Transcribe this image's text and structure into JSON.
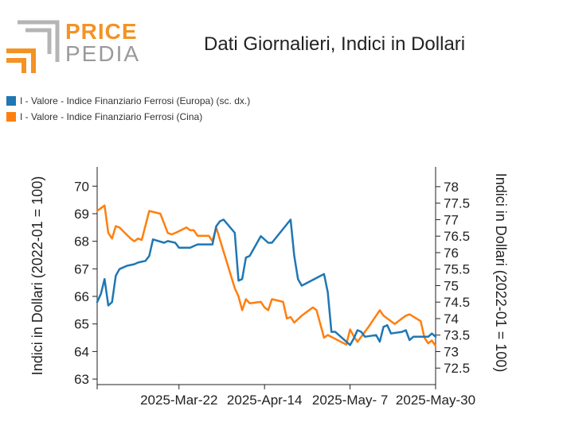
{
  "brand": {
    "top": "PRICE",
    "bottom": "PEDIA"
  },
  "colors": {
    "brand_orange": "#f39325",
    "brand_gray": "#b5b5b5",
    "series1": "#1f77b4",
    "series2": "#ff7f0e"
  },
  "chart_data": {
    "type": "line",
    "title": "Dati Giornalieri, Indici in Dollari",
    "x_ticks": [
      "2025-Mar-22",
      "2025-Apr-14",
      "2025-May- 7",
      "2025-May-30"
    ],
    "y_left": {
      "label": "Indici in Dollari (2022-01 = 100)",
      "ticks": [
        63,
        64,
        65,
        66,
        67,
        68,
        69,
        70
      ],
      "range": [
        62.8,
        70.7
      ]
    },
    "y_right": {
      "label": "Indici in Dollari (2022-01 = 100)",
      "ticks": [
        "72.5",
        "73",
        "73.5",
        "74",
        "74.5",
        "75",
        "75.5",
        "76",
        "76.5",
        "77",
        "77.5",
        "78"
      ],
      "range": [
        72.0,
        78.6
      ]
    },
    "series": [
      {
        "name": "I - Valore - Indice Finanziario Ferrosi (Europa) (sc. dx.)",
        "axis": "right",
        "color": "#1f77b4",
        "points": [
          [
            "2025-02-28",
            74.5
          ],
          [
            "2025-03-01",
            74.75
          ],
          [
            "2025-03-02",
            75.2
          ],
          [
            "2025-03-03",
            74.4
          ],
          [
            "2025-03-04",
            74.5
          ],
          [
            "2025-03-05",
            75.3
          ],
          [
            "2025-03-06",
            75.5
          ],
          [
            "2025-03-08",
            75.6
          ],
          [
            "2025-03-10",
            75.65
          ],
          [
            "2025-03-11",
            75.7
          ],
          [
            "2025-03-13",
            75.75
          ],
          [
            "2025-03-14",
            75.9
          ],
          [
            "2025-03-15",
            76.4
          ],
          [
            "2025-03-18",
            76.3
          ],
          [
            "2025-03-19",
            76.35
          ],
          [
            "2025-03-21",
            76.3
          ],
          [
            "2025-03-22",
            76.15
          ],
          [
            "2025-03-25",
            76.15
          ],
          [
            "2025-03-26",
            76.2
          ],
          [
            "2025-03-27",
            76.25
          ],
          [
            "2025-03-28",
            76.25
          ],
          [
            "2025-03-31",
            76.25
          ],
          [
            "2025-04-01",
            76.8
          ],
          [
            "2025-04-02",
            76.95
          ],
          [
            "2025-04-03",
            77.0
          ],
          [
            "2025-04-06",
            76.6
          ],
          [
            "2025-04-07",
            75.15
          ],
          [
            "2025-04-08",
            75.2
          ],
          [
            "2025-04-09",
            75.85
          ],
          [
            "2025-04-10",
            75.9
          ],
          [
            "2025-04-13",
            76.5
          ],
          [
            "2025-04-15",
            76.3
          ],
          [
            "2025-04-16",
            76.3
          ],
          [
            "2025-04-21",
            77.0
          ],
          [
            "2025-04-22",
            75.9
          ],
          [
            "2025-04-23",
            75.2
          ],
          [
            "2025-04-24",
            75.0
          ],
          [
            "2025-04-30",
            75.35
          ],
          [
            "2025-05-01",
            74.8
          ],
          [
            "2025-05-02",
            73.6
          ],
          [
            "2025-05-03",
            73.6
          ],
          [
            "2025-05-07",
            73.2
          ],
          [
            "2025-05-08",
            73.4
          ],
          [
            "2025-05-09",
            73.65
          ],
          [
            "2025-05-10",
            73.6
          ],
          [
            "2025-05-11",
            73.45
          ],
          [
            "2025-05-14",
            73.5
          ],
          [
            "2025-05-15",
            73.3
          ],
          [
            "2025-05-16",
            73.75
          ],
          [
            "2025-05-17",
            73.8
          ],
          [
            "2025-05-18",
            73.55
          ],
          [
            "2025-05-21",
            73.6
          ],
          [
            "2025-05-22",
            73.65
          ],
          [
            "2025-05-23",
            73.35
          ],
          [
            "2025-05-24",
            73.45
          ],
          [
            "2025-05-28",
            73.45
          ],
          [
            "2025-05-29",
            73.55
          ],
          [
            "2025-05-30",
            73.45
          ]
        ]
      },
      {
        "name": "I - Valore - Indice Finanziario Ferrosi (Cina)",
        "axis": "left",
        "color": "#ff7f0e",
        "points": [
          [
            "2025-02-28",
            69.1
          ],
          [
            "2025-03-02",
            69.3
          ],
          [
            "2025-03-03",
            68.3
          ],
          [
            "2025-03-04",
            68.1
          ],
          [
            "2025-03-05",
            68.55
          ],
          [
            "2025-03-06",
            68.5
          ],
          [
            "2025-03-09",
            68.1
          ],
          [
            "2025-03-10",
            68.0
          ],
          [
            "2025-03-11",
            68.1
          ],
          [
            "2025-03-12",
            68.05
          ],
          [
            "2025-03-14",
            69.1
          ],
          [
            "2025-03-17",
            69.0
          ],
          [
            "2025-03-19",
            68.3
          ],
          [
            "2025-03-20",
            68.25
          ],
          [
            "2025-03-21",
            68.3
          ],
          [
            "2025-03-24",
            68.5
          ],
          [
            "2025-03-25",
            68.4
          ],
          [
            "2025-03-26",
            68.4
          ],
          [
            "2025-03-27",
            68.2
          ],
          [
            "2025-03-30",
            68.2
          ],
          [
            "2025-03-31",
            68.0
          ],
          [
            "2025-04-01",
            68.5
          ],
          [
            "2025-04-06",
            66.3
          ],
          [
            "2025-04-07",
            66.0
          ],
          [
            "2025-04-08",
            65.5
          ],
          [
            "2025-04-09",
            65.9
          ],
          [
            "2025-04-10",
            65.75
          ],
          [
            "2025-04-13",
            65.8
          ],
          [
            "2025-04-14",
            65.6
          ],
          [
            "2025-04-15",
            65.5
          ],
          [
            "2025-04-16",
            65.9
          ],
          [
            "2025-04-19",
            65.8
          ],
          [
            "2025-04-20",
            65.2
          ],
          [
            "2025-04-21",
            65.25
          ],
          [
            "2025-04-22",
            65.05
          ],
          [
            "2025-04-24",
            65.3
          ],
          [
            "2025-04-27",
            65.6
          ],
          [
            "2025-04-28",
            65.5
          ],
          [
            "2025-04-30",
            64.5
          ],
          [
            "2025-05-01",
            64.6
          ],
          [
            "2025-05-06",
            64.25
          ],
          [
            "2025-05-07",
            64.8
          ],
          [
            "2025-05-08",
            64.55
          ],
          [
            "2025-05-09",
            64.35
          ],
          [
            "2025-05-12",
            64.9
          ],
          [
            "2025-05-15",
            65.5
          ],
          [
            "2025-05-16",
            65.3
          ],
          [
            "2025-05-19",
            65.0
          ],
          [
            "2025-05-22",
            65.3
          ],
          [
            "2025-05-23",
            65.35
          ],
          [
            "2025-05-26",
            65.1
          ],
          [
            "2025-05-27",
            64.5
          ],
          [
            "2025-05-28",
            64.3
          ],
          [
            "2025-05-29",
            64.4
          ],
          [
            "2025-05-30",
            64.2
          ]
        ]
      }
    ]
  }
}
